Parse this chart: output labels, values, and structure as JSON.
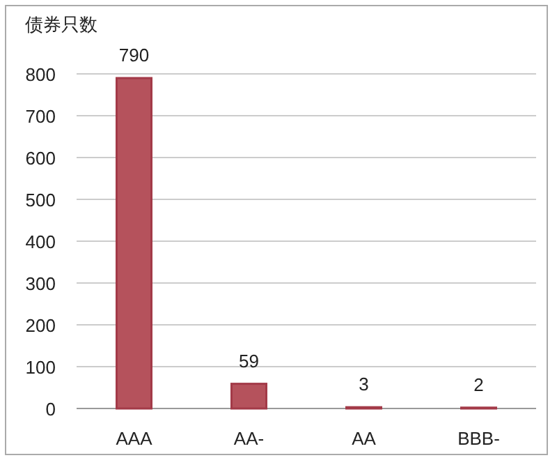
{
  "chart_data": {
    "type": "bar",
    "ylabel": "债券只数",
    "categories": [
      "AAA",
      "AA-",
      "AA",
      "BBB-"
    ],
    "values": [
      790,
      59,
      3,
      2
    ],
    "color": "#b5525c",
    "ylim": [
      0,
      800
    ],
    "yticks": [
      0,
      100,
      200,
      300,
      400,
      500,
      600,
      700,
      800
    ],
    "grid": "y",
    "data_labels": true
  }
}
